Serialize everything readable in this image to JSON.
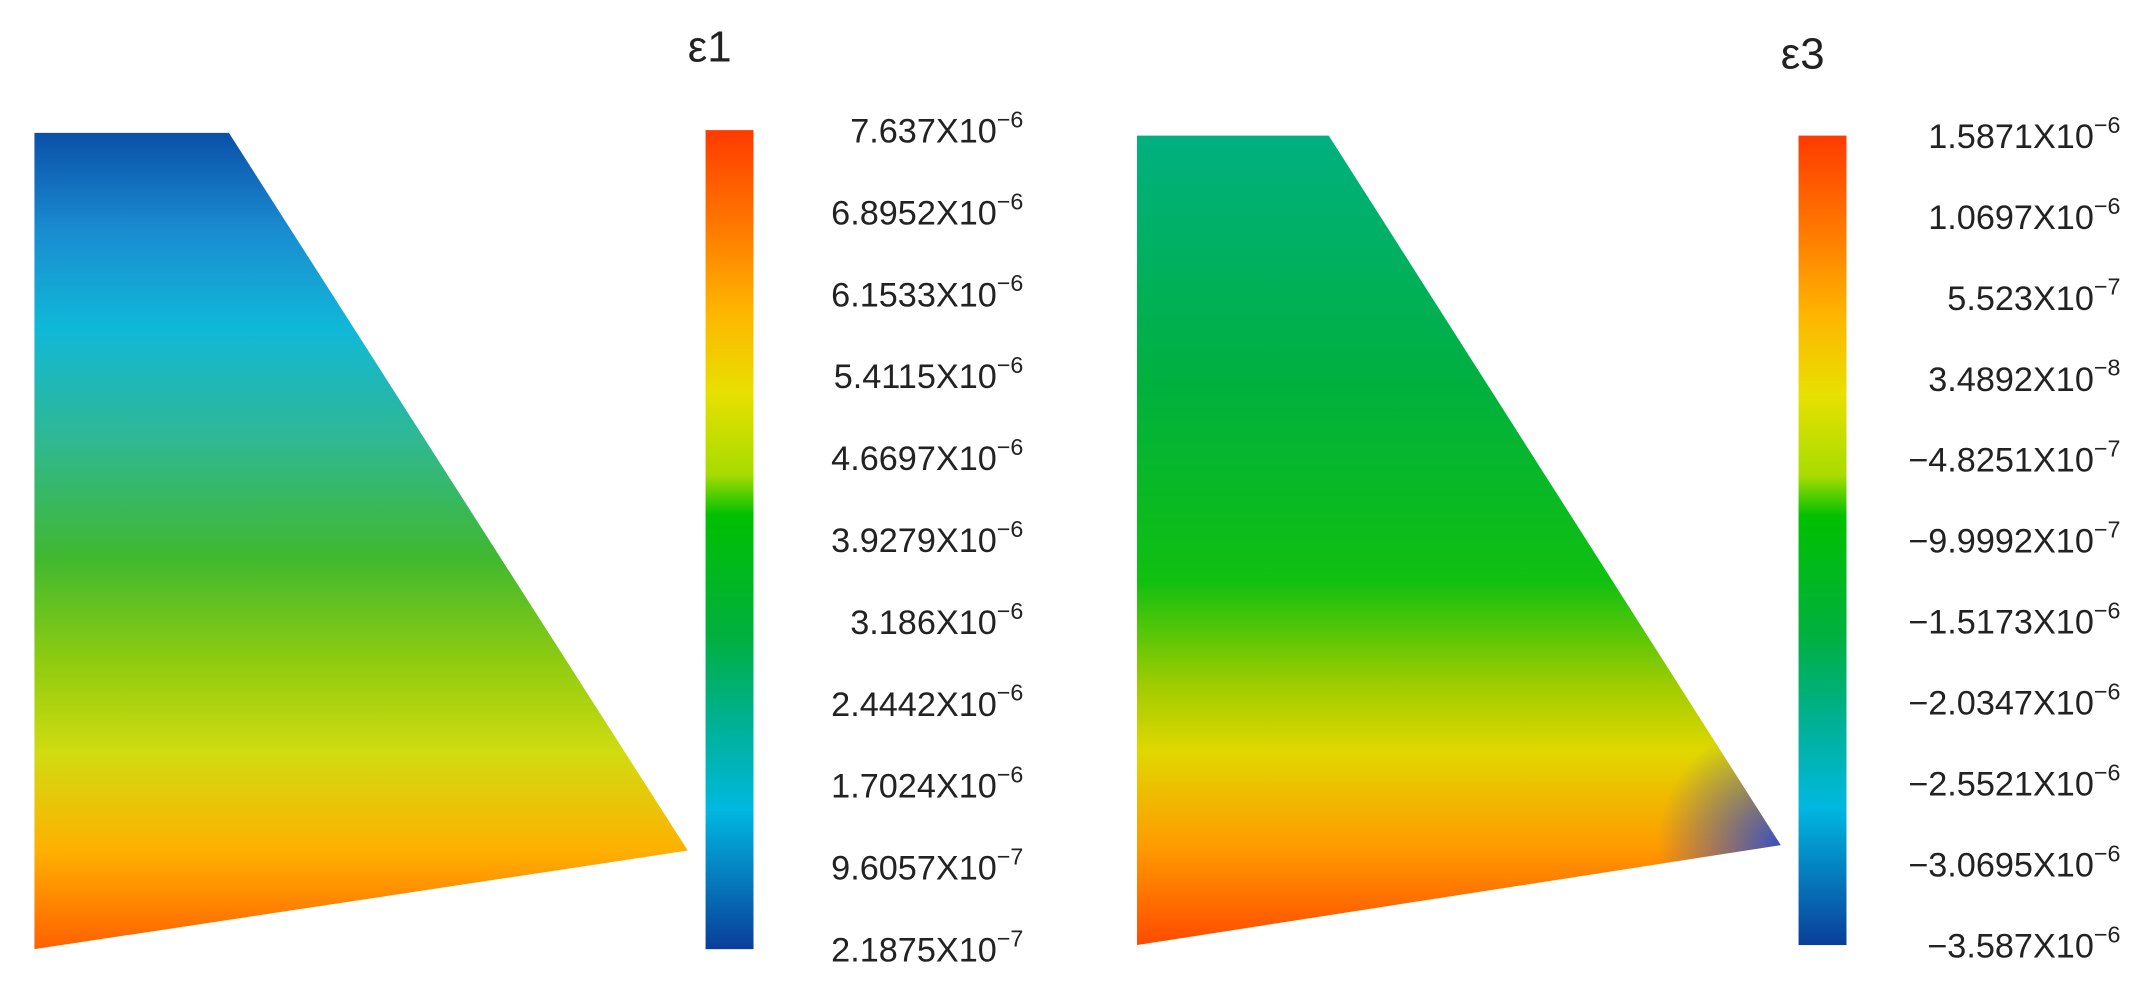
{
  "panels": [
    {
      "title": "ε1",
      "colorbar_labels": [
        {
          "mantissa": "7.637X10",
          "exponent": "−6"
        },
        {
          "mantissa": "6.8952X10",
          "exponent": "−6"
        },
        {
          "mantissa": "6.1533X10",
          "exponent": "−6"
        },
        {
          "mantissa": "5.4115X10",
          "exponent": "−6"
        },
        {
          "mantissa": "4.6697X10",
          "exponent": "−6"
        },
        {
          "mantissa": "3.9279X10",
          "exponent": "−6"
        },
        {
          "mantissa": "3.186X10",
          "exponent": "−6"
        },
        {
          "mantissa": "2.4442X10",
          "exponent": "−6"
        },
        {
          "mantissa": "1.7024X10",
          "exponent": "−6"
        },
        {
          "mantissa": "9.6057X10",
          "exponent": "−7"
        },
        {
          "mantissa": "2.1875X10",
          "exponent": "−7"
        }
      ]
    },
    {
      "title": "ε3",
      "colorbar_labels": [
        {
          "mantissa": "1.5871X10",
          "exponent": "−6"
        },
        {
          "mantissa": "1.0697X10",
          "exponent": "−6"
        },
        {
          "mantissa": "5.523X10",
          "exponent": "−7"
        },
        {
          "mantissa": "3.4892X10",
          "exponent": "−8"
        },
        {
          "mantissa": "−4.8251X10",
          "exponent": "−7"
        },
        {
          "mantissa": "−9.9992X10",
          "exponent": "−7"
        },
        {
          "mantissa": "−1.5173X10",
          "exponent": "−6"
        },
        {
          "mantissa": "−2.0347X10",
          "exponent": "−6"
        },
        {
          "mantissa": "−2.5521X10",
          "exponent": "−6"
        },
        {
          "mantissa": "−3.0695X10",
          "exponent": "−6"
        },
        {
          "mantissa": "−3.587X10",
          "exponent": "−6"
        }
      ]
    }
  ]
}
